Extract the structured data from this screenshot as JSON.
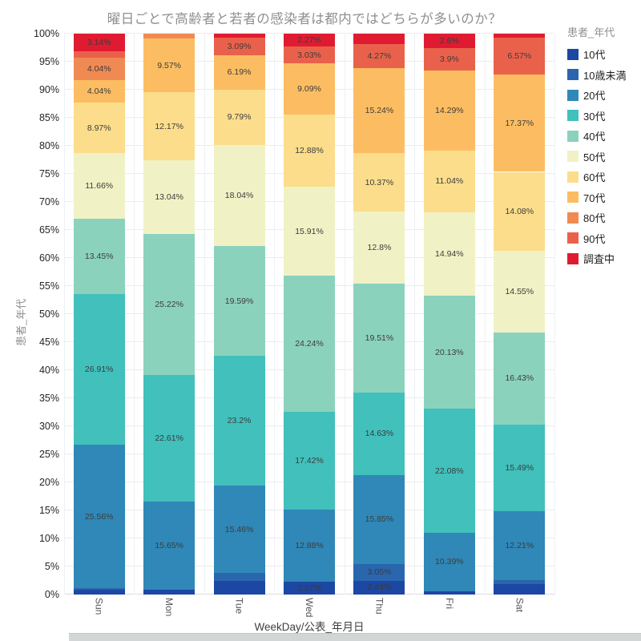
{
  "chart": {
    "title": "曜日ごとで高齢者と若者の感染者は都内ではどちらが多いのか？",
    "x_axis": {
      "title": "WeekDay/公表_年月日",
      "tick_labels": [
        "Sun",
        "Mon",
        "Tue",
        "Wed",
        "Thu",
        "Fri",
        "Sat"
      ]
    },
    "y_axis": {
      "title": "患者_年代",
      "step": 5,
      "tick_labels": [
        "0%",
        "5%",
        "10%",
        "15%",
        "20%",
        "25%",
        "30%",
        "35%",
        "40%",
        "45%",
        "50%",
        "55%",
        "60%",
        "65%",
        "70%",
        "75%",
        "80%",
        "85%",
        "90%",
        "95%",
        "100%"
      ]
    },
    "legend": {
      "title": "患者_年代"
    }
  },
  "chart_data": {
    "type": "bar",
    "stacked": true,
    "normalized_percent": true,
    "stack_order": "first series at bottom of each bar",
    "grid": true,
    "legend_position": "right",
    "ylim": [
      0,
      100
    ],
    "categories": [
      "Sun",
      "Mon",
      "Tue",
      "Wed",
      "Thu",
      "Fri",
      "Sat"
    ],
    "series": [
      {
        "name": "10代",
        "color": "#1c47a3",
        "values": [
          0.9,
          0.87,
          2.4,
          2.27,
          2.44,
          0.63,
          1.88
        ],
        "labels": [
          null,
          null,
          null,
          "2.27%",
          "2.44%",
          null,
          null
        ]
      },
      {
        "name": "10歳未満",
        "color": "#2a66ae",
        "values": [
          0.22,
          0,
          1.5,
          0,
          3.05,
          0,
          0.72
        ],
        "labels": [
          null,
          null,
          null,
          null,
          "3.05%",
          null,
          null
        ]
      },
      {
        "name": "20代",
        "color": "#2f88b7",
        "values": [
          25.56,
          15.65,
          15.46,
          12.88,
          15.85,
          10.39,
          12.21
        ],
        "labels": [
          "25.56%",
          "15.65%",
          "15.46%",
          "12.88%",
          "15.85%",
          "10.39%",
          "12.21%"
        ]
      },
      {
        "name": "30代",
        "color": "#41c0bc",
        "values": [
          26.91,
          22.61,
          23.2,
          17.42,
          14.63,
          22.08,
          15.49
        ],
        "labels": [
          "26.91%",
          "22.61%",
          "23.2%",
          "17.42%",
          "14.63%",
          "22.08%",
          "15.49%"
        ]
      },
      {
        "name": "40代",
        "color": "#8bd2bd",
        "values": [
          13.45,
          25.22,
          19.59,
          24.24,
          19.51,
          20.13,
          16.43
        ],
        "labels": [
          "13.45%",
          "25.22%",
          "19.59%",
          "24.24%",
          "19.51%",
          "20.13%",
          "16.43%"
        ]
      },
      {
        "name": "50代",
        "color": "#f0f2c5",
        "values": [
          11.66,
          13.04,
          18.04,
          15.91,
          12.8,
          14.94,
          14.55
        ],
        "labels": [
          "11.66%",
          "13.04%",
          "18.04%",
          "15.91%",
          "12.8%",
          "14.94%",
          "14.55%"
        ]
      },
      {
        "name": "60代",
        "color": "#fbdd8c",
        "values": [
          8.97,
          12.17,
          9.79,
          12.88,
          10.37,
          11.04,
          14.08
        ],
        "labels": [
          "8.97%",
          "12.17%",
          "9.79%",
          "12.88%",
          "10.37%",
          "11.04%",
          "14.08%"
        ]
      },
      {
        "name": "70代",
        "color": "#fcbd62",
        "values": [
          4.04,
          9.57,
          6.19,
          9.09,
          15.24,
          14.29,
          17.37
        ],
        "labels": [
          "4.04%",
          "9.57%",
          "6.19%",
          "9.09%",
          "15.24%",
          "14.29%",
          "17.37%"
        ]
      },
      {
        "name": "80代",
        "color": "#f08a53",
        "values": [
          4.04,
          0.87,
          0,
          0,
          0,
          0,
          0
        ],
        "labels": [
          "4.04%",
          null,
          null,
          null,
          null,
          null,
          null
        ]
      },
      {
        "name": "90代",
        "color": "#ea614b",
        "values": [
          1.11,
          0,
          3.09,
          3.03,
          4.27,
          3.9,
          6.57
        ],
        "labels": [
          null,
          null,
          "3.09%",
          "3.03%",
          "4.27%",
          "3.9%",
          "6.57%"
        ]
      },
      {
        "name": "調査中",
        "color": "#e01b31",
        "values": [
          3.14,
          0,
          0.74,
          2.27,
          1.84,
          2.6,
          0.7
        ],
        "labels": [
          "3.14%",
          null,
          null,
          "2.27%",
          null,
          "2.6%",
          null
        ]
      }
    ]
  }
}
